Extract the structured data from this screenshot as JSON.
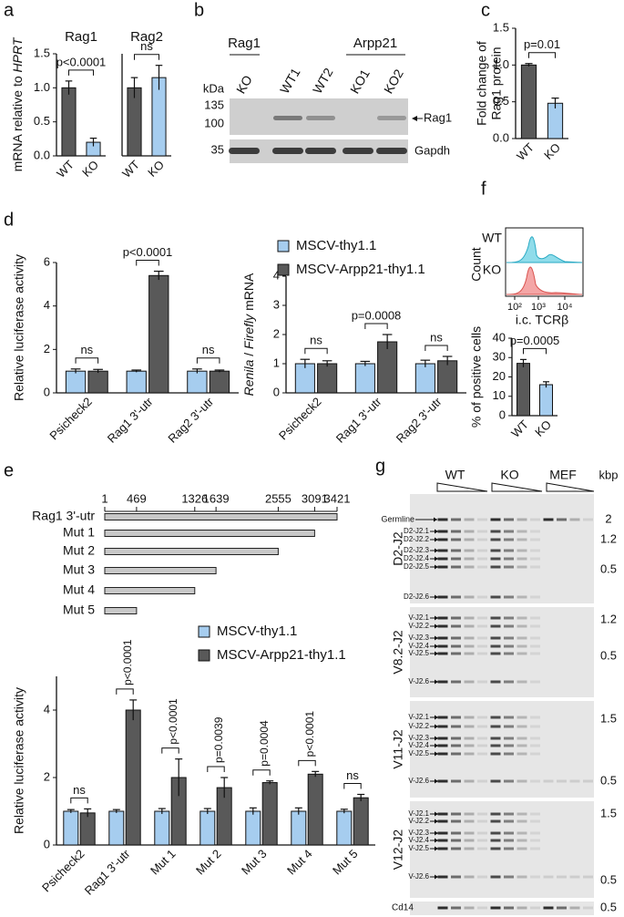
{
  "panel_labels": [
    "a",
    "b",
    "c",
    "d",
    "e",
    "f",
    "g"
  ],
  "chart_data": [
    {
      "type": "bar",
      "title": "Rag1",
      "y_label_parts": [
        {
          "text": "mRNA relative to "
        },
        {
          "text": "HPRT",
          "italic": true
        }
      ],
      "categories": [
        "WT",
        "KO"
      ],
      "values": [
        1.0,
        0.2
      ],
      "errors": [
        0.1,
        0.06
      ],
      "colors": [
        "#595959",
        "#a6cdef"
      ],
      "ylim": [
        0,
        1.5
      ],
      "yticks": [
        {
          "value": 0,
          "label": "0.0"
        },
        0.5,
        {
          "value": 1,
          "label": "1.0"
        },
        1.5
      ],
      "annotation": "p<0.0001"
    },
    {
      "type": "bar",
      "title": "Rag2",
      "categories": [
        "WT",
        "KO"
      ],
      "values": [
        1.0,
        1.15
      ],
      "errors": [
        0.15,
        0.18
      ],
      "colors": [
        "#595959",
        "#a6cdef"
      ],
      "ylim": [
        0,
        1.5
      ],
      "annotation": "ns"
    },
    {
      "type": "bar",
      "y_label": [
        "Fold change of",
        "Rag1 protein"
      ],
      "categories": [
        "WT",
        "KO"
      ],
      "values": [
        1.0,
        0.48
      ],
      "errors": [
        0.02,
        0.07
      ],
      "colors": [
        "#595959",
        "#a6cdef"
      ],
      "ylim": [
        0,
        1.5
      ],
      "yticks": [
        {
          "value": 0,
          "label": "0.0"
        },
        0.5,
        {
          "value": 1,
          "label": "1.0"
        },
        1.5
      ],
      "annotation": "p=0.01"
    },
    {
      "type": "bar",
      "y_label": "Relative luciferase activity",
      "categories": [
        "Psicheck2",
        "Rag1 3'-utr",
        "Rag2 3'-utr"
      ],
      "series": [
        {
          "color": "#a6cdef",
          "values": [
            1,
            1,
            1
          ],
          "errors": [
            0.1,
            0.05,
            0.1
          ]
        },
        {
          "color": "#595959",
          "values": [
            1,
            5.4,
            1
          ],
          "errors": [
            0.08,
            0.2,
            0.05
          ]
        }
      ],
      "ylim": [
        0,
        6
      ],
      "yticks": [
        0,
        2,
        4,
        6
      ],
      "annotations": [
        "ns",
        "p<0.0001",
        "ns"
      ]
    },
    {
      "type": "bar",
      "y_label_parts": [
        {
          "text": "Renila",
          "italic": true
        },
        {
          "text": " / "
        },
        {
          "text": "Firefly",
          "italic": true
        },
        {
          "text": " mRNA"
        }
      ],
      "categories": [
        "Psicheck2",
        "Rag1 3'-utr",
        "Rag2 3'-utr"
      ],
      "series": [
        {
          "name": "MSCV-thy1.1",
          "color": "#a6cdef",
          "values": [
            1,
            1,
            1
          ],
          "errors": [
            0.15,
            0.08,
            0.12
          ]
        },
        {
          "name": "MSCV-Arpp21-thy1.1",
          "color": "#595959",
          "values": [
            1,
            1.75,
            1.1
          ],
          "errors": [
            0.1,
            0.25,
            0.15
          ]
        }
      ],
      "ylim": [
        0,
        4
      ],
      "yticks": [
        0,
        1,
        2,
        3,
        4
      ],
      "annotations": [
        "ns",
        "p=0.0008",
        "ns"
      ]
    },
    {
      "type": "bar",
      "y_label": "% of positive cells",
      "categories": [
        "WT",
        "KO"
      ],
      "values": [
        27,
        16
      ],
      "errors": [
        2,
        1.5
      ],
      "colors": [
        "#595959",
        "#a6cdef"
      ],
      "ylim": [
        0,
        40
      ],
      "yticks": [
        0,
        10,
        20,
        30,
        40
      ],
      "annotation": "p=0.0005"
    },
    {
      "type": "bar",
      "y_label": "Relative luciferase activity",
      "categories": [
        "Psicheck2",
        "Rag1 3'-utr",
        "Mut 1",
        "Mut 2",
        "Mut 3",
        "Mut 4",
        "Mut 5"
      ],
      "series": [
        {
          "name": "MSCV-thy1.1",
          "color": "#a6cdef",
          "values": [
            1,
            1,
            1,
            1,
            1,
            1,
            1
          ],
          "errors": [
            0.05,
            0.05,
            0.08,
            0.08,
            0.1,
            0.1,
            0.06
          ]
        },
        {
          "name": "MSCV-Arpp21-thy1.1",
          "color": "#595959",
          "values": [
            0.95,
            4.0,
            2.0,
            1.7,
            1.85,
            2.1,
            1.4
          ],
          "errors": [
            0.12,
            0.3,
            0.55,
            0.3,
            0.05,
            0.08,
            0.1
          ]
        }
      ],
      "ylim": [
        0,
        5
      ],
      "yticks": [
        0,
        2,
        4
      ],
      "annotations": [
        "ns",
        "p<0.0001",
        "p<0.0001",
        "p=0.0039",
        "p=0.0004",
        "p<0.0001",
        "ns"
      ]
    }
  ],
  "blot": {
    "groups": [
      "Rag1",
      "Arpp21"
    ],
    "lanes": [
      "KO",
      "WT1",
      "WT2",
      "KO1",
      "KO2"
    ],
    "unit": "kDa",
    "markers": [
      "135",
      "100",
      "35"
    ],
    "band_label": "Rag1",
    "loading_label": "Gapdh"
  },
  "flow": {
    "samples": [
      "WT",
      "KO"
    ],
    "y_label": "Count",
    "xticks": [
      "10²",
      "10³",
      "10⁴"
    ],
    "x_label": "i.c. TCRβ"
  },
  "schematic": {
    "ticks": [
      1,
      469,
      1326,
      1639,
      2555,
      3091,
      3421
    ],
    "constructs": [
      {
        "name": "Rag1 3'-utr",
        "end": 3421
      },
      {
        "name": "Mut 1",
        "end": 3091
      },
      {
        "name": "Mut 2",
        "end": 2555
      },
      {
        "name": "Mut 3",
        "end": 1639
      },
      {
        "name": "Mut 4",
        "end": 1326
      },
      {
        "name": "Mut 5",
        "end": 469
      }
    ]
  },
  "gel": {
    "groups": [
      "WT",
      "KO",
      "MEF"
    ],
    "unit": "kbp",
    "sections": [
      {
        "name": "D2-J2",
        "bands": [
          "Germline",
          "D2-J2.1",
          "D2-J2.2",
          "D2-J2.3",
          "D2-J2.4",
          "D2-J2.5",
          "D2-J2.6"
        ],
        "markers": [
          "2",
          "1.2",
          "0.5"
        ]
      },
      {
        "name": "V8.2-J2",
        "bands": [
          "V-J2.1",
          "V-J2.2",
          "V-J2.3",
          "V-J2.4",
          "V-J2.5",
          "V-J2.6"
        ],
        "markers": [
          "1.2",
          "0.5"
        ]
      },
      {
        "name": "V11-J2",
        "bands": [
          "V-J2.1",
          "V-J2.2",
          "V-J2.3",
          "V-J2.4",
          "V-J2.5",
          "V-J2.6"
        ],
        "markers": [
          "1.5",
          "0.5"
        ]
      },
      {
        "name": "V12-J2",
        "bands": [
          "V-J2.1",
          "V-J2.2",
          "V-J2.3",
          "V-J2.4",
          "V-J2.5",
          "V-J2.6"
        ],
        "markers": [
          "1.5",
          "0.5"
        ]
      }
    ],
    "control": "Cd14",
    "control_marker": "0.5"
  }
}
